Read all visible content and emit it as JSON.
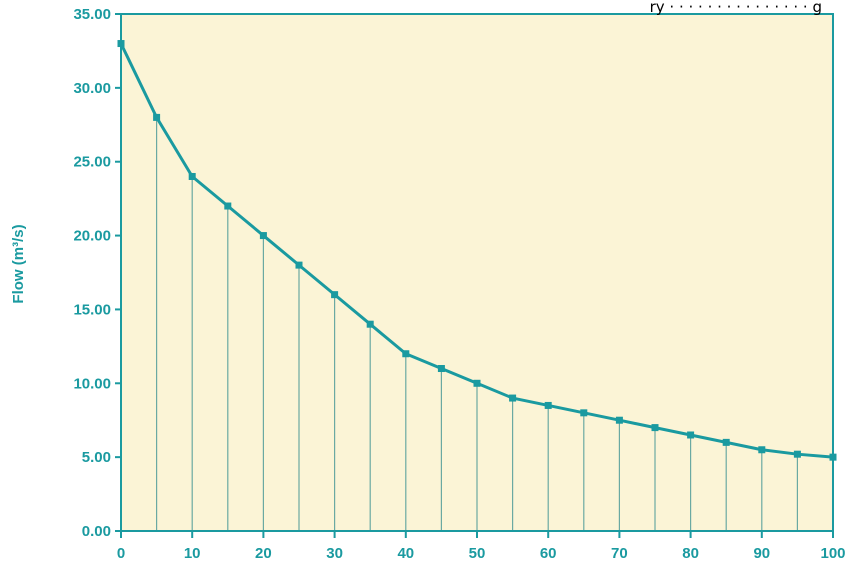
{
  "corner_fragment": "ry  ·  · · · ·  ·  ·  · · ·  ·  ·  · · ·  g",
  "colors": {
    "plot_background": "#fbf4d6",
    "accent": "#1a9aa0",
    "drop_line": "#6aa9a2",
    "page_background": "#ffffff"
  },
  "chart_data": {
    "type": "line",
    "title": "",
    "xlabel": "",
    "ylabel": "Flow (m³/s)",
    "x": [
      0,
      5,
      10,
      15,
      20,
      25,
      30,
      35,
      40,
      45,
      50,
      55,
      60,
      65,
      70,
      75,
      80,
      85,
      90,
      95,
      100
    ],
    "series": [
      {
        "values": [
          33.0,
          28.0,
          24.0,
          22.0,
          20.0,
          18.0,
          16.0,
          14.0,
          12.0,
          11.0,
          10.0,
          9.0,
          8.5,
          8.0,
          7.5,
          7.0,
          6.5,
          6.0,
          5.5,
          5.2,
          5.0
        ]
      }
    ],
    "xlim": [
      0,
      100
    ],
    "ylim": [
      0,
      35
    ],
    "x_ticks": [
      "0",
      "10",
      "20",
      "30",
      "40",
      "50",
      "60",
      "70",
      "80",
      "90",
      "100"
    ],
    "y_ticks": [
      "0.00",
      "5.00",
      "10.00",
      "15.00",
      "20.00",
      "25.00",
      "30.00",
      "35.00"
    ],
    "drop_lines": true,
    "grid": false,
    "legend": "none"
  }
}
